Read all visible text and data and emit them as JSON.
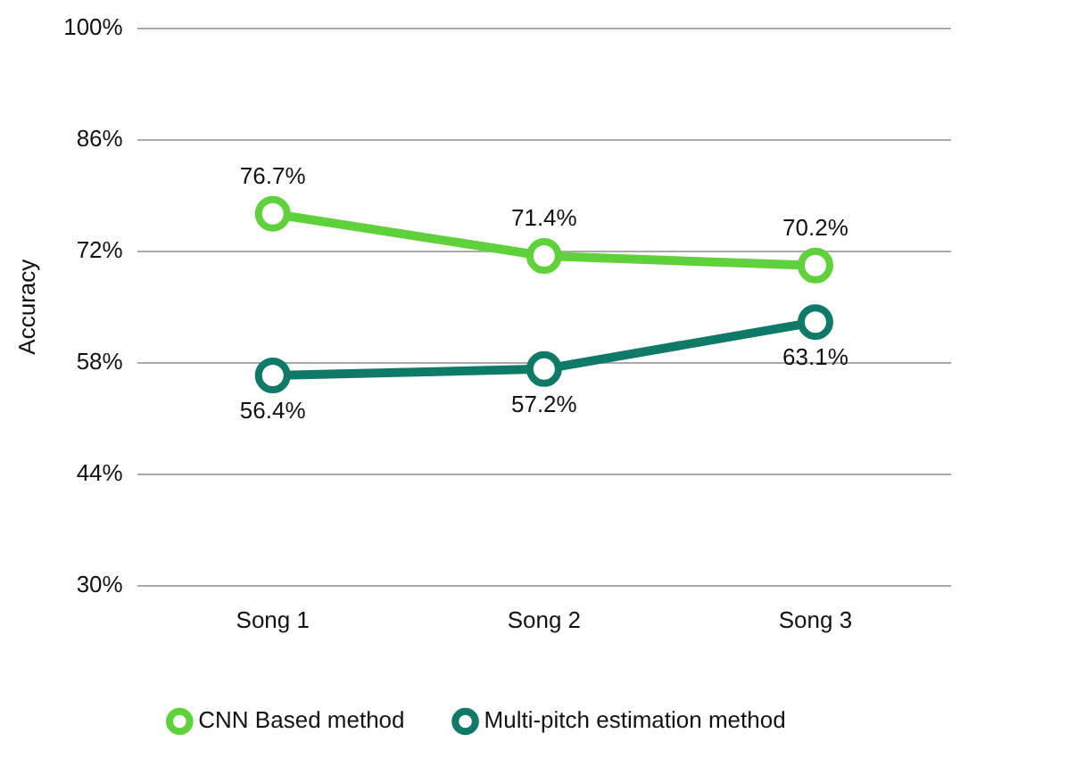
{
  "chart_data": {
    "type": "line",
    "ylabel": "Accuracy",
    "categories": [
      "Song 1",
      "Song 2",
      "Song 3"
    ],
    "series": [
      {
        "name": "CNN Based method",
        "color": "#5fd13a",
        "values": [
          76.7,
          71.4,
          70.2
        ],
        "value_labels": [
          "76.7%",
          "71.4%",
          "70.2%"
        ]
      },
      {
        "name": "Multi-pitch estimation method",
        "color": "#0f7a68",
        "values": [
          56.4,
          57.2,
          63.1
        ],
        "value_labels": [
          "56.4%",
          "57.2%",
          "63.1%"
        ]
      }
    ],
    "ylim": [
      30,
      100
    ],
    "yticks": [
      {
        "value": 30,
        "label": "30%"
      },
      {
        "value": 44,
        "label": "44%"
      },
      {
        "value": 58,
        "label": "58%"
      },
      {
        "value": 72,
        "label": "72%"
      },
      {
        "value": 86,
        "label": "86%"
      },
      {
        "value": 100,
        "label": "100%"
      }
    ],
    "grid": "y",
    "legend": "bottom",
    "marker": "circle",
    "line_style": "solid"
  }
}
